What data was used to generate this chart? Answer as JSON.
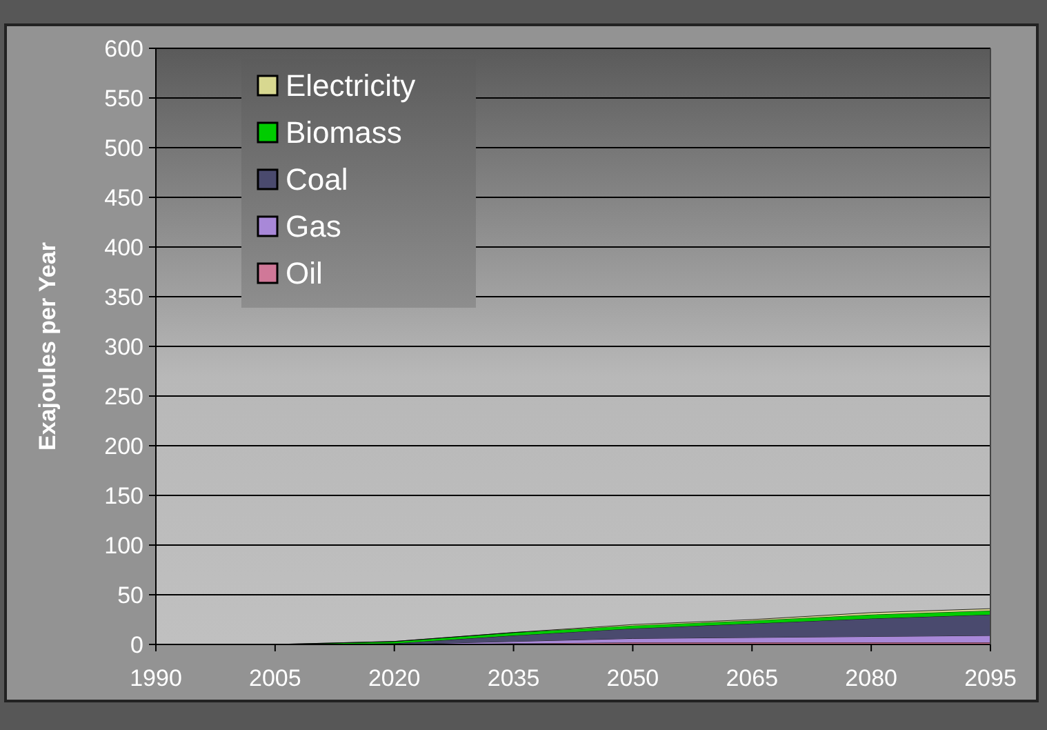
{
  "chart_data": {
    "type": "area",
    "stacked": true,
    "ylabel": "Exajoules per Year",
    "categories": [
      "1990",
      "2005",
      "2020",
      "2035",
      "2050",
      "2065",
      "2080",
      "2095"
    ],
    "series": [
      {
        "name": "Oil",
        "color": "#d07898",
        "values": [
          0,
          0,
          0,
          1,
          2,
          2,
          2,
          2
        ]
      },
      {
        "name": "Gas",
        "color": "#a888d8",
        "values": [
          0,
          0,
          0,
          2,
          4,
          5,
          6,
          7
        ]
      },
      {
        "name": "Coal",
        "color": "#4a4a6e",
        "values": [
          0,
          0,
          1,
          6,
          10,
          14,
          18,
          21
        ]
      },
      {
        "name": "Biomass",
        "color": "#00cc00",
        "values": [
          0,
          0,
          2,
          3,
          3,
          3,
          4,
          4
        ]
      },
      {
        "name": "Electricity",
        "color": "#d8d890",
        "values": [
          0,
          0,
          0,
          0,
          1,
          1,
          2,
          2
        ]
      }
    ],
    "ylim": [
      0,
      600
    ],
    "yticks": [
      0,
      50,
      100,
      150,
      200,
      250,
      300,
      350,
      400,
      450,
      500,
      550,
      600
    ],
    "grid": "y",
    "legend": "top left"
  }
}
